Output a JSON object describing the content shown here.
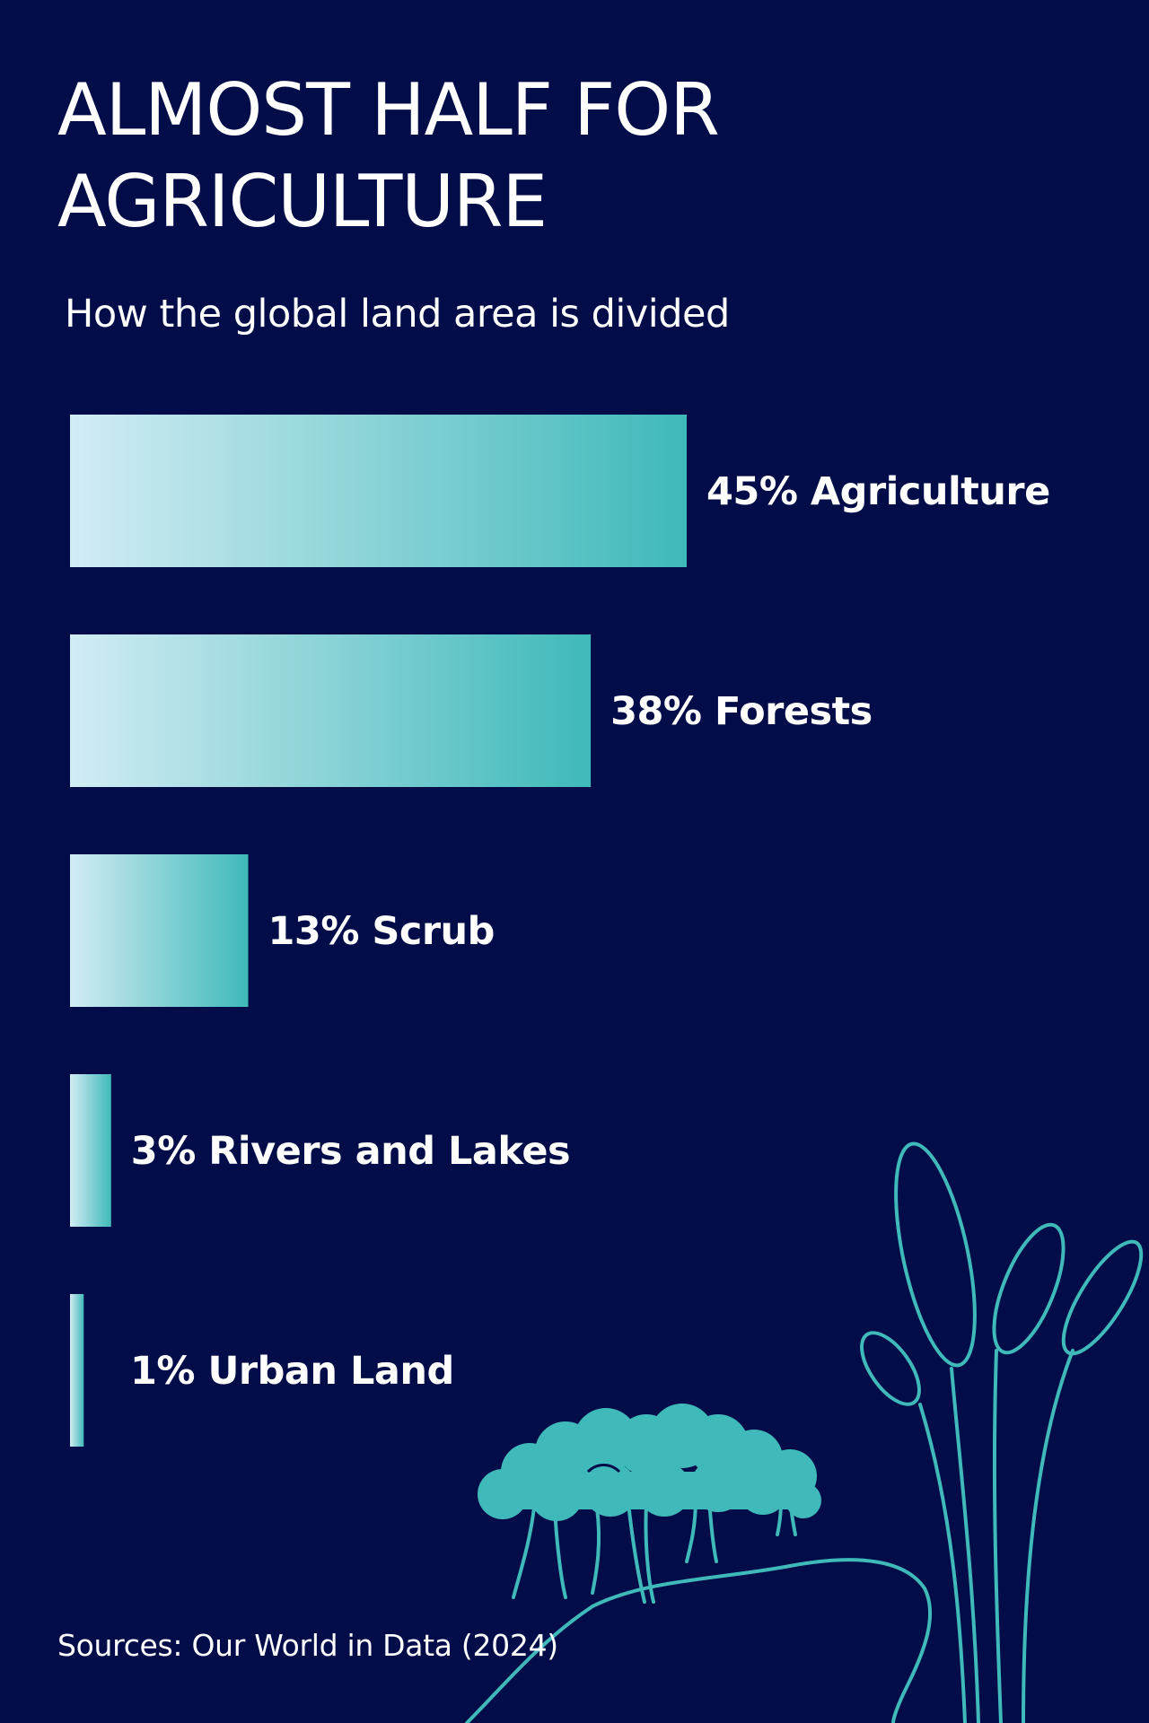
{
  "title": "ALMOST HALF FOR AGRICULTURE",
  "subtitle": "How the global land area is divided",
  "source": "Sources: Our World in Data (2024)",
  "colors": {
    "background": "#010c48",
    "bar_light": "#d2ecf4",
    "bar_dark": "#3fb9b9",
    "text": "#ffffff",
    "illustration": "#3fb9b9"
  },
  "chart_data": {
    "type": "bar",
    "orientation": "horizontal",
    "categories": [
      "Agriculture",
      "Forests",
      "Scrub",
      "Rivers and Lakes",
      "Urban Land"
    ],
    "values": [
      45,
      38,
      13,
      3,
      1
    ],
    "labels": [
      "45% Agriculture",
      "38% Forests",
      "13% Scrub",
      "3% Rivers and Lakes",
      "1% Urban Land"
    ],
    "unit": "%",
    "title": "ALMOST HALF FOR AGRICULTURE",
    "subtitle": "How the global land area is divided",
    "xlim": [
      0,
      45
    ],
    "grid": false,
    "legend": "none"
  }
}
